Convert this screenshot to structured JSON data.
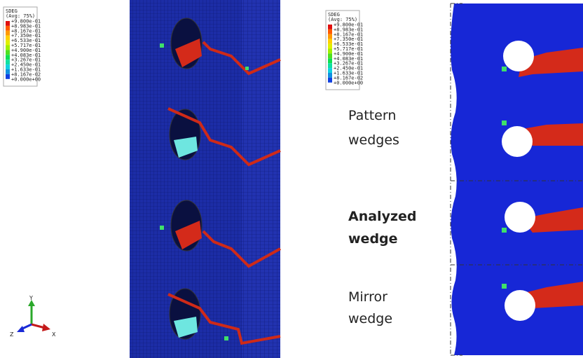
{
  "legends": [
    {
      "title": "SDEG",
      "subtitle": "(Avg: 75%)",
      "values": [
        "+9.800e-01",
        "+8.983e-01",
        "+8.167e-01",
        "+7.350e-01",
        "+6.533e-01",
        "+5.717e-01",
        "+4.900e-01",
        "+4.083e-01",
        "+3.267e-01",
        "+2.450e-01",
        "+1.633e-01",
        "+8.167e-02",
        "+0.000e+00"
      ]
    },
    {
      "title": "SDEG",
      "subtitle": "(Avg: 75%)",
      "values": [
        "+9.800e-01",
        "+8.983e-01",
        "+8.167e-01",
        "+7.350e-01",
        "+6.533e-01",
        "+5.717e-01",
        "+4.900e-01",
        "+4.083e-01",
        "+3.267e-01",
        "+2.450e-01",
        "+1.633e-01",
        "+8.167e-02",
        "+0.000e+00"
      ]
    }
  ],
  "triad": {
    "y": "Y",
    "z": "Z",
    "x": "X"
  },
  "labels": [
    {
      "lines": [
        "Pattern",
        "wedges"
      ],
      "bold": false
    },
    {
      "lines": [
        "Analyzed",
        "wedge"
      ],
      "bold": true
    },
    {
      "lines": [
        "Mirror",
        "wedge"
      ],
      "bold": false
    }
  ]
}
